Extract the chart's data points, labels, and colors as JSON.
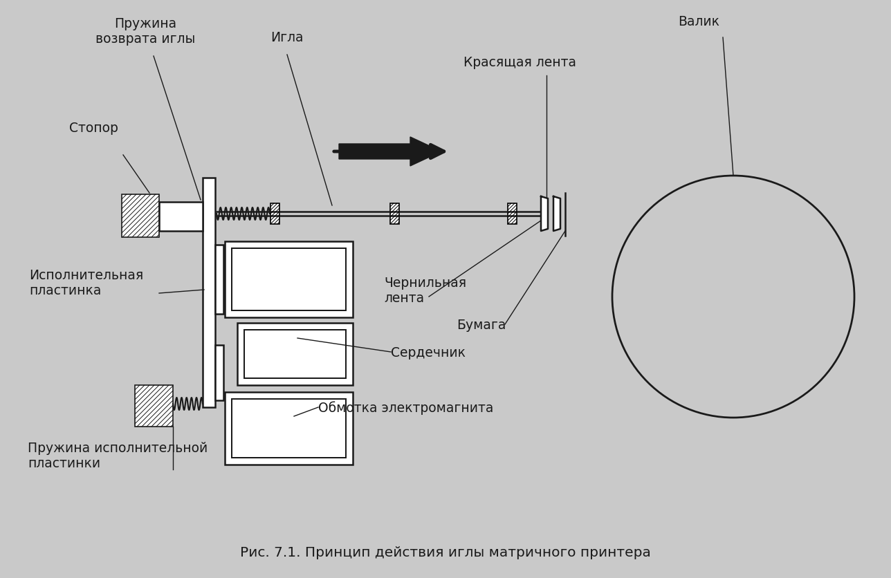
{
  "bg_color": "#c9c9c9",
  "line_color": "#1a1a1a",
  "title": "Рис. 7.1. Принцип действия иглы матричного принтера",
  "labels": {
    "pruzhina_vozvrata": "Пружина\nвозврата иглы",
    "igla": "Игла",
    "stopor": "Стопор",
    "krasashaya_lenta": "Красящая лента",
    "valik": "Валик",
    "ispolnitelnaya": "Исполнительная\nпластинка",
    "chernilnaya_lenta": "Чернильная\nлента",
    "bumaga": "Бумага",
    "serdechnik": "Сердечник",
    "obmotka": "Обмотка электромагнита",
    "pruzhina_ispoln": "Пружина исполнительной\nпластинки"
  },
  "figsize": [
    12.88,
    8.37
  ],
  "dpi": 100
}
